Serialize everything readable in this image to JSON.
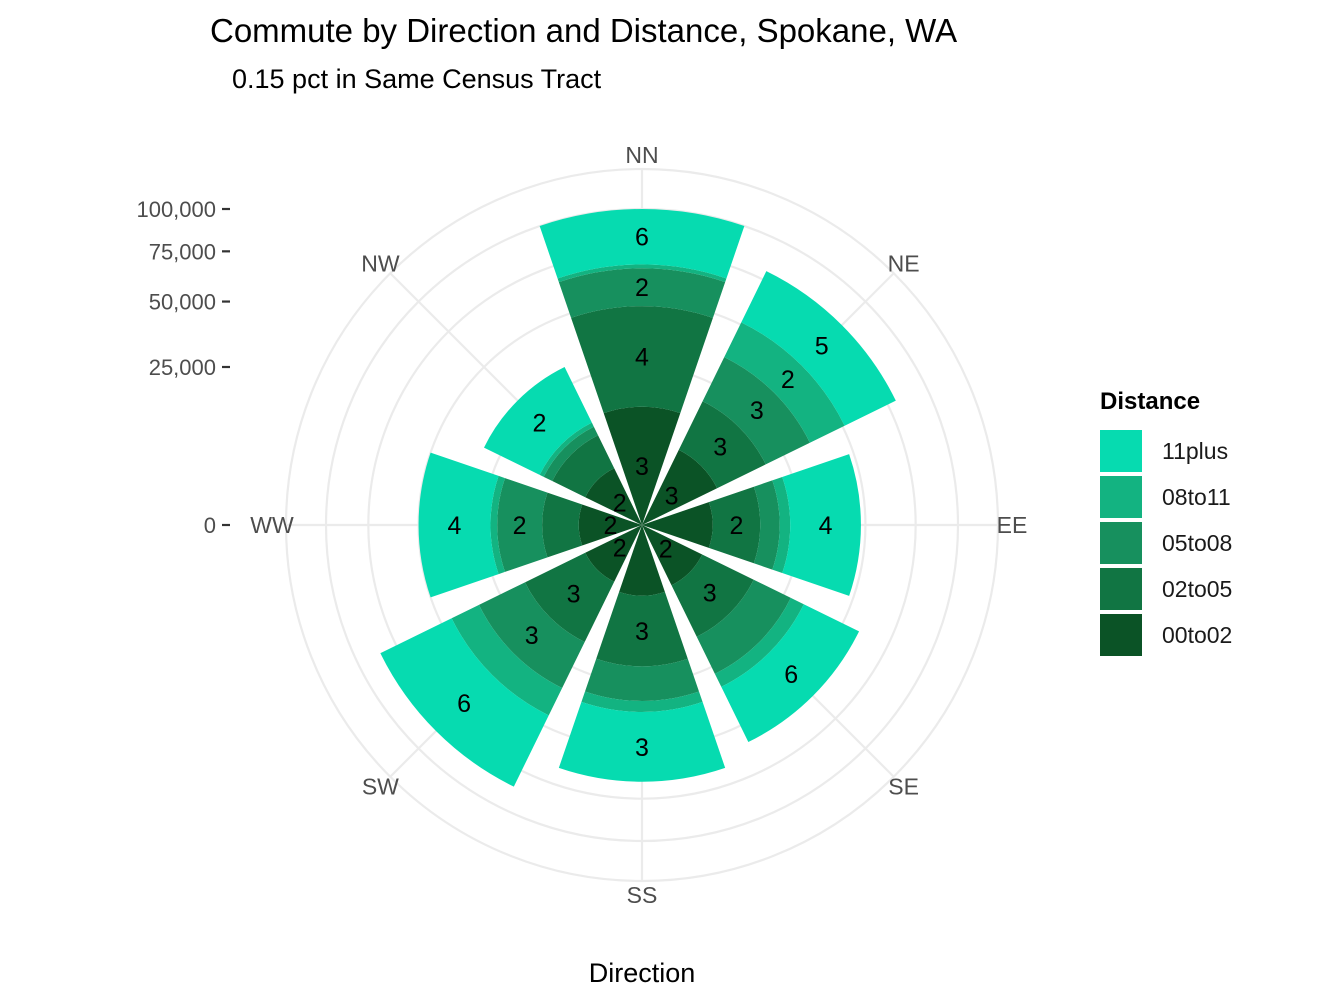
{
  "chart_data": {
    "type": "bar",
    "subtype": "stacked-polar",
    "title": "Commute by Direction and Distance, Spokane, WA",
    "subtitle": "0.15 pct in Same Census Tract",
    "xlabel": "Direction",
    "ylabel": "",
    "categories": [
      "NN",
      "NE",
      "EE",
      "SE",
      "SS",
      "SW",
      "WW",
      "NW"
    ],
    "ylim": [
      0,
      100000
    ],
    "yticks": [
      0,
      25000,
      50000,
      75000,
      100000
    ],
    "ytick_labels": [
      "0",
      "25,000",
      "50,000",
      "75,000",
      "100,000"
    ],
    "legend_title": "Distance",
    "legend_position": "right",
    "grid": true,
    "series": [
      {
        "name": "00to02",
        "color": "#0b5326",
        "values": [
          14000,
          7000,
          5000,
          4500,
          5000,
          4000,
          4000,
          4000
        ],
        "labels": [
          "3",
          "3",
          "",
          "2",
          "",
          "2",
          "2",
          "2"
        ]
      },
      {
        "name": "02to05",
        "color": "#117543",
        "values": [
          34000,
          12000,
          9000,
          11000,
          15000,
          13000,
          6000,
          6000
        ],
        "labels": [
          "4",
          "3",
          "2",
          "3",
          "3",
          "3",
          "",
          ""
        ]
      },
      {
        "name": "05to08",
        "color": "#17905e",
        "values": [
          18000,
          16000,
          5000,
          12000,
          11000,
          16000,
          11000,
          2000
        ],
        "labels": [
          "2",
          "3",
          "",
          "",
          "",
          "3",
          "2",
          ""
        ]
      },
      {
        "name": "08to11",
        "color": "#13b381",
        "values": [
          2000,
          16000,
          3000,
          5000,
          4000,
          12000,
          2000,
          1000
        ],
        "labels": [
          "",
          "2",
          "",
          "",
          "",
          "",
          "",
          ""
        ]
      },
      {
        "name": "11plus",
        "color": "#06dbb0",
        "values": [
          32000,
          29000,
          26000,
          26000,
          31000,
          40000,
          27000,
          18000
        ],
        "labels": [
          "6",
          "5",
          "4",
          "6",
          "3",
          "6",
          "4",
          "2"
        ]
      }
    ]
  }
}
